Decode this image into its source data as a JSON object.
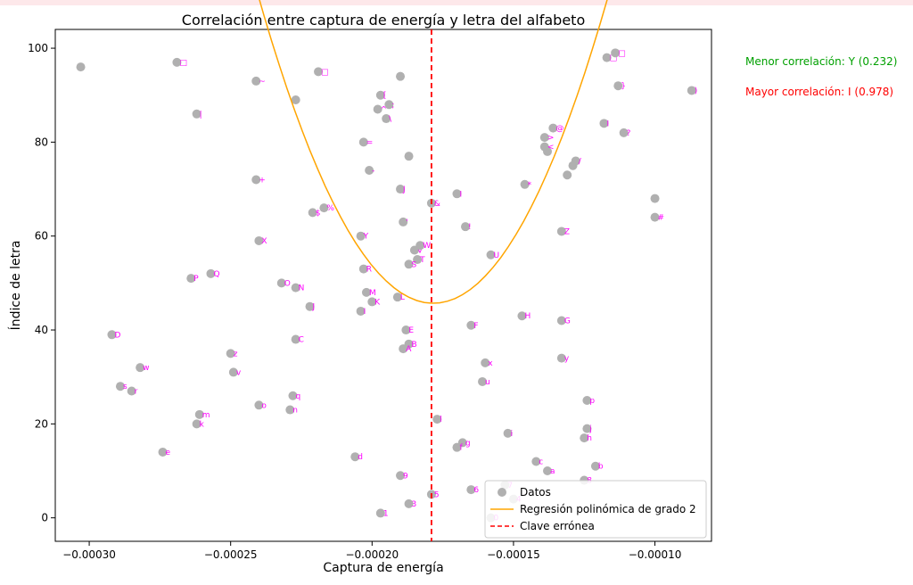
{
  "chart_data": {
    "type": "scatter",
    "title": "Correlación entre captura de energía y letra del alfabeto",
    "xlabel": "Captura de energía",
    "ylabel": "Índice de letra",
    "xlim": [
      -0.000312,
      -8e-05
    ],
    "ylim": [
      -5,
      104
    ],
    "xticks": [
      -0.0003,
      -0.00025,
      -0.0002,
      -0.00015,
      -0.0001
    ],
    "xtick_labels": [
      "−0.00030",
      "−0.00025",
      "−0.00020",
      "−0.00015",
      "−0.00010"
    ],
    "yticks": [
      0,
      20,
      40,
      60,
      80,
      100
    ],
    "ytick_labels": [
      "0",
      "20",
      "40",
      "60",
      "80",
      "100"
    ],
    "vline": {
      "x": -0.000179,
      "label": "Clave errónea",
      "color": "#ff0000"
    },
    "regression": {
      "label": "Regresión polinómica de grado 2",
      "color": "#ffa500",
      "coef": [
        17100000000,
        6100000,
        589.7
      ],
      "x_range": [
        -0.000303,
        -8.7e-05
      ]
    },
    "series_label": "Datos",
    "point_color": "#b0b0b0",
    "label_color": "#ff00ff",
    "points": [
      {
        "x": -0.000303,
        "y": 96,
        "l": ""
      },
      {
        "x": -0.000269,
        "y": 97,
        "l": "□"
      },
      {
        "x": -0.000262,
        "y": 86,
        "l": "|"
      },
      {
        "x": -0.000241,
        "y": 93,
        "l": "~"
      },
      {
        "x": -0.000227,
        "y": 89,
        "l": ""
      },
      {
        "x": -0.000219,
        "y": 95,
        "l": "□"
      },
      {
        "x": -0.00019,
        "y": 94,
        "l": ""
      },
      {
        "x": -0.000197,
        "y": 90,
        "l": "["
      },
      {
        "x": -0.000194,
        "y": 88,
        "l": ";"
      },
      {
        "x": -0.000198,
        "y": 87,
        "l": "^"
      },
      {
        "x": -0.000195,
        "y": 85,
        "l": "\\"
      },
      {
        "x": -0.000203,
        "y": 80,
        "l": "="
      },
      {
        "x": -0.000187,
        "y": 77,
        "l": ""
      },
      {
        "x": -0.000201,
        "y": 74,
        "l": "-"
      },
      {
        "x": -0.000241,
        "y": 72,
        "l": "+"
      },
      {
        "x": -0.00019,
        "y": 70,
        "l": "J"
      },
      {
        "x": -0.000217,
        "y": 66,
        "l": "%"
      },
      {
        "x": -0.000221,
        "y": 65,
        "l": "$"
      },
      {
        "x": -0.000189,
        "y": 63,
        "l": "'"
      },
      {
        "x": -0.000179,
        "y": 67,
        "l": "&"
      },
      {
        "x": -0.00017,
        "y": 69,
        "l": "I"
      },
      {
        "x": -0.000204,
        "y": 60,
        "l": "Y"
      },
      {
        "x": -0.00024,
        "y": 59,
        "l": "X"
      },
      {
        "x": -0.000185,
        "y": 57,
        "l": "V"
      },
      {
        "x": -0.000183,
        "y": 58,
        "l": "W"
      },
      {
        "x": -0.000184,
        "y": 55,
        "l": "T"
      },
      {
        "x": -0.000187,
        "y": 54,
        "l": "S"
      },
      {
        "x": -0.000203,
        "y": 53,
        "l": "R"
      },
      {
        "x": -0.000167,
        "y": 62,
        "l": "!"
      },
      {
        "x": -0.000158,
        "y": 56,
        "l": "U"
      },
      {
        "x": -0.000257,
        "y": 52,
        "l": "Q"
      },
      {
        "x": -0.000264,
        "y": 51,
        "l": "P"
      },
      {
        "x": -0.000232,
        "y": 50,
        "l": "O"
      },
      {
        "x": -0.000227,
        "y": 49,
        "l": "N"
      },
      {
        "x": -0.000202,
        "y": 48,
        "l": "M"
      },
      {
        "x": -0.000191,
        "y": 47,
        "l": "L"
      },
      {
        "x": -0.0002,
        "y": 46,
        "l": "K"
      },
      {
        "x": -0.000222,
        "y": 45,
        "l": "J"
      },
      {
        "x": -0.000204,
        "y": 44,
        "l": "I"
      },
      {
        "x": -0.000292,
        "y": 39,
        "l": "D"
      },
      {
        "x": -0.000227,
        "y": 38,
        "l": "C"
      },
      {
        "x": -0.000188,
        "y": 40,
        "l": "E"
      },
      {
        "x": -0.000187,
        "y": 37,
        "l": "B"
      },
      {
        "x": -0.000189,
        "y": 36,
        "l": "A"
      },
      {
        "x": -0.000165,
        "y": 41,
        "l": "F"
      },
      {
        "x": -0.000147,
        "y": 43,
        "l": "H"
      },
      {
        "x": -0.000133,
        "y": 42,
        "l": "G"
      },
      {
        "x": -0.00025,
        "y": 35,
        "l": "z"
      },
      {
        "x": -0.000282,
        "y": 32,
        "l": "w"
      },
      {
        "x": -0.000249,
        "y": 31,
        "l": "v"
      },
      {
        "x": -0.000289,
        "y": 28,
        "l": "s"
      },
      {
        "x": -0.000285,
        "y": 27,
        "l": "r"
      },
      {
        "x": -0.000228,
        "y": 26,
        "l": "q"
      },
      {
        "x": -0.00024,
        "y": 24,
        "l": "o"
      },
      {
        "x": -0.000229,
        "y": 23,
        "l": "n"
      },
      {
        "x": -0.000261,
        "y": 22,
        "l": "m"
      },
      {
        "x": -0.000262,
        "y": 20,
        "l": "k"
      },
      {
        "x": -0.000274,
        "y": 14,
        "l": "e"
      },
      {
        "x": -0.000206,
        "y": 13,
        "l": "d"
      },
      {
        "x": -0.00016,
        "y": 33,
        "l": "x"
      },
      {
        "x": -0.000161,
        "y": 29,
        "l": "u"
      },
      {
        "x": -0.000133,
        "y": 34,
        "l": "y"
      },
      {
        "x": -0.000124,
        "y": 25,
        "l": "p"
      },
      {
        "x": -0.000177,
        "y": 21,
        "l": "l"
      },
      {
        "x": -0.000168,
        "y": 16,
        "l": "g"
      },
      {
        "x": -0.00017,
        "y": 15,
        "l": "f"
      },
      {
        "x": -0.000152,
        "y": 18,
        "l": "i"
      },
      {
        "x": -0.000124,
        "y": 19,
        "l": "j"
      },
      {
        "x": -0.000125,
        "y": 17,
        "l": "h"
      },
      {
        "x": -0.000142,
        "y": 12,
        "l": "c"
      },
      {
        "x": -0.000121,
        "y": 11,
        "l": "b"
      },
      {
        "x": -0.000138,
        "y": 10,
        "l": "a"
      },
      {
        "x": -0.00019,
        "y": 9,
        "l": "9"
      },
      {
        "x": -0.000125,
        "y": 8,
        "l": "8"
      },
      {
        "x": -0.000153,
        "y": 7,
        "l": "7"
      },
      {
        "x": -0.000165,
        "y": 6,
        "l": "6"
      },
      {
        "x": -0.000179,
        "y": 5,
        "l": "5"
      },
      {
        "x": -0.00015,
        "y": 4,
        "l": "4"
      },
      {
        "x": -0.000187,
        "y": 3,
        "l": "3"
      },
      {
        "x": -0.000158,
        "y": 0,
        "l": "0"
      },
      {
        "x": -0.000197,
        "y": 1,
        "l": "1"
      },
      {
        "x": -0.000146,
        "y": 71,
        "l": "*"
      },
      {
        "x": -0.000131,
        "y": 73,
        "l": ""
      },
      {
        "x": -0.000129,
        "y": 75,
        "l": ""
      },
      {
        "x": -0.000128,
        "y": 76,
        "l": "/"
      },
      {
        "x": -0.000138,
        "y": 78,
        "l": ""
      },
      {
        "x": -0.000139,
        "y": 79,
        "l": "<"
      },
      {
        "x": -0.000139,
        "y": 81,
        "l": ">"
      },
      {
        "x": -0.000136,
        "y": 83,
        "l": "@"
      },
      {
        "x": -0.000118,
        "y": 84,
        "l": "I"
      },
      {
        "x": -0.000111,
        "y": 82,
        "l": "?"
      },
      {
        "x": -0.000113,
        "y": 92,
        "l": "}"
      },
      {
        "x": -0.000117,
        "y": 98,
        "l": "□"
      },
      {
        "x": -0.000114,
        "y": 99,
        "l": "□"
      },
      {
        "x": -8.7e-05,
        "y": 91,
        "l": ")"
      },
      {
        "x": -0.0001,
        "y": 68,
        "l": ""
      },
      {
        "x": -0.0001,
        "y": 64,
        "l": "#"
      },
      {
        "x": -0.000133,
        "y": 61,
        "l": "Z"
      }
    ],
    "annotations": [
      {
        "id": "ann-min",
        "text": "Menor correlación: Y (0.232)",
        "color": "#00a000"
      },
      {
        "id": "ann-max",
        "text": "Mayor correlación: I (0.978)",
        "color": "#ff0000"
      }
    ]
  }
}
